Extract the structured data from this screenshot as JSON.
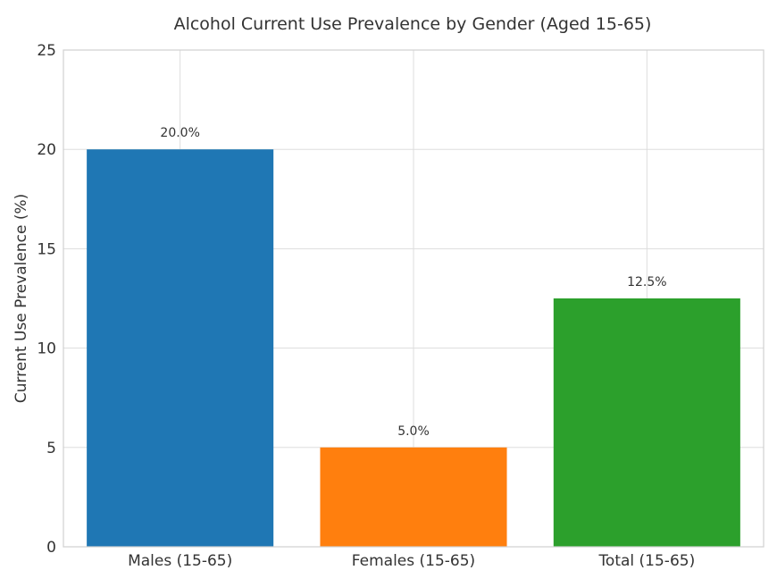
{
  "chart_data": {
    "type": "bar",
    "title": "Alcohol Current Use Prevalence by Gender (Aged 15-65)",
    "xlabel": "",
    "ylabel": "Current Use Prevalence (%)",
    "categories": [
      "Males (15-65)",
      "Females (15-65)",
      "Total (15-65)"
    ],
    "values": [
      20.0,
      5.0,
      12.5
    ],
    "value_labels": [
      "20.0%",
      "5.0%",
      "12.5%"
    ],
    "colors": [
      "#1f77b4",
      "#ff7f0e",
      "#2ca02c"
    ],
    "ylim": [
      0,
      25
    ],
    "yticks": [
      0,
      5,
      10,
      15,
      20,
      25
    ],
    "grid": true,
    "legend": "none"
  }
}
